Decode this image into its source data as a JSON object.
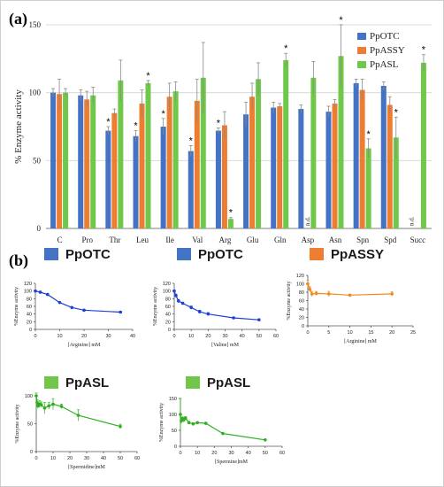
{
  "panel_labels": [
    "(a)",
    "(b)"
  ],
  "colors": {
    "PpOTC": "#4472c4",
    "PpASSY": "#ed7d31",
    "PpASL": "#70c84a",
    "axis": "#7f7f7f",
    "grid": "#d9d9d9",
    "text": "#222222"
  },
  "chart_data": [
    {
      "type": "bar",
      "panel": "(a)",
      "ylabel": "% Enzyme activity",
      "ylim": [
        0,
        150
      ],
      "yticks": [
        0,
        50,
        100,
        150
      ],
      "grid": true,
      "legend_placement": "top-right",
      "categories": [
        "C",
        "Pro",
        "Thr",
        "Leu",
        "Ile",
        "Val",
        "Arg",
        "Glu",
        "Gln",
        "Asp",
        "Asn",
        "Spn",
        "Spd",
        "Succ"
      ],
      "series": [
        {
          "name": "PpOTC",
          "values": [
            100,
            98,
            72,
            68,
            75,
            57,
            72,
            84,
            89,
            88,
            86,
            107,
            105,
            null
          ],
          "errors": [
            3,
            4,
            3,
            4,
            6,
            4,
            2,
            9,
            4,
            3,
            4,
            3,
            3,
            null
          ],
          "significant": [
            false,
            false,
            true,
            true,
            true,
            true,
            true,
            false,
            false,
            false,
            false,
            false,
            false,
            false
          ]
        },
        {
          "name": "PpASSY",
          "values": [
            99,
            95,
            85,
            92,
            97,
            94,
            76,
            97,
            90,
            null,
            92,
            102,
            91,
            null
          ],
          "errors": [
            11,
            6,
            3,
            10,
            10,
            16,
            10,
            10,
            2,
            null,
            3,
            8,
            6,
            null
          ],
          "significant": [
            false,
            false,
            false,
            false,
            false,
            false,
            false,
            false,
            false,
            false,
            false,
            false,
            false,
            false
          ]
        },
        {
          "name": "PpASL",
          "values": [
            100,
            98,
            109,
            107,
            101,
            111,
            7,
            110,
            124,
            111,
            127,
            59,
            67,
            122
          ],
          "errors": [
            3,
            6,
            15,
            2,
            7,
            26,
            1,
            12,
            5,
            12,
            23,
            7,
            15,
            6
          ],
          "significant": [
            false,
            false,
            false,
            true,
            false,
            false,
            true,
            false,
            true,
            false,
            true,
            true,
            true,
            true
          ]
        }
      ],
      "annotations": [
        {
          "category": "Asp",
          "series": "PpASSY",
          "text": "n.d."
        },
        {
          "category": "Succ",
          "series": "PpOTC",
          "text": "n.d."
        }
      ]
    },
    {
      "type": "line",
      "panel": "(b)",
      "legend": "PpOTC",
      "color": "#1f3fd6",
      "xlabel": "[Arginine] mM",
      "ylabel": "%Enzyme activity",
      "xlim": [
        0,
        40
      ],
      "xticks": [
        0,
        10,
        20,
        30,
        40
      ],
      "ylim": [
        0,
        120
      ],
      "yticks": [
        0,
        20,
        40,
        60,
        80,
        100,
        120
      ],
      "x": [
        0,
        2,
        5,
        10,
        15,
        20,
        35
      ],
      "y": [
        100,
        97,
        91,
        70,
        57,
        50,
        45
      ],
      "yerr": [
        2,
        2,
        2,
        2,
        2,
        2,
        2
      ]
    },
    {
      "type": "line",
      "panel": "(b)",
      "legend": "PpOTC",
      "color": "#1f3fd6",
      "xlabel": "[Valine] mM",
      "ylabel": "%Enzyme activity",
      "xlim": [
        0,
        60
      ],
      "xticks": [
        0,
        10,
        20,
        30,
        40,
        50,
        60
      ],
      "ylim": [
        0,
        120
      ],
      "yticks": [
        0,
        20,
        40,
        60,
        80,
        100,
        120
      ],
      "x": [
        0,
        1,
        2.5,
        5,
        10,
        15,
        20,
        35,
        50
      ],
      "y": [
        100,
        88,
        74,
        68,
        57,
        46,
        40,
        30,
        25
      ],
      "yerr": [
        3,
        4,
        4,
        3,
        4,
        4,
        4,
        2,
        2
      ]
    },
    {
      "type": "line",
      "panel": "(b)",
      "legend": "PpASSY",
      "color": "#f08a1c",
      "xlabel": "[Arginine] mM",
      "ylabel": "%Enzyme activity",
      "xlim": [
        0,
        25
      ],
      "xticks": [
        0,
        5,
        10,
        15,
        20,
        25
      ],
      "ylim": [
        0,
        120
      ],
      "yticks": [
        0,
        20,
        40,
        60,
        80,
        100,
        120
      ],
      "x": [
        0,
        0.5,
        1,
        2,
        5,
        10,
        20
      ],
      "y": [
        100,
        87,
        76,
        77,
        76,
        73,
        76
      ],
      "yerr": [
        8,
        6,
        6,
        5,
        6,
        2,
        5
      ]
    },
    {
      "type": "line",
      "panel": "(b)",
      "legend": "PpASL",
      "color": "#2fb01f",
      "xlabel": "[Spermidine]mM",
      "ylabel": "%Enzyme activity",
      "xlim": [
        0,
        60
      ],
      "xticks": [
        0,
        10,
        20,
        30,
        40,
        50,
        60
      ],
      "ylim": [
        0,
        100
      ],
      "yticks": [
        0,
        50,
        100
      ],
      "x": [
        0,
        0.5,
        1,
        2,
        3,
        5,
        7.5,
        10,
        15,
        25,
        50
      ],
      "y": [
        100,
        88,
        82,
        85,
        84,
        78,
        82,
        85,
        81,
        65,
        45
      ],
      "yerr": [
        5,
        5,
        5,
        6,
        5,
        10,
        6,
        10,
        4,
        10,
        4
      ]
    },
    {
      "type": "line",
      "panel": "(b)",
      "legend": "PpASL",
      "color": "#2fb01f",
      "xlabel": "[Spermine]mM",
      "ylabel": "%Enzyme activity",
      "xlim": [
        0,
        60
      ],
      "xticks": [
        0,
        10,
        20,
        30,
        40,
        50,
        60
      ],
      "ylim": [
        0,
        150
      ],
      "yticks": [
        0,
        50,
        100,
        150
      ],
      "x": [
        0,
        0.5,
        1,
        2,
        3,
        5,
        7.5,
        10,
        15,
        25,
        50
      ],
      "y": [
        100,
        80,
        86,
        83,
        88,
        74,
        70,
        74,
        72,
        40,
        20
      ],
      "yerr": [
        50,
        8,
        6,
        8,
        5,
        4,
        4,
        3,
        3,
        3,
        2
      ]
    }
  ]
}
